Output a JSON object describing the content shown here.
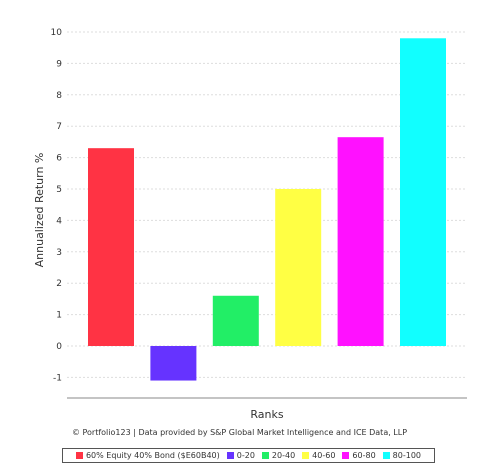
{
  "chart_data": {
    "type": "bar",
    "categories": [
      "60% Equity 40% Bond ($E60B40)",
      "0-20",
      "20-40",
      "40-60",
      "60-80",
      "80-100"
    ],
    "values": [
      6.3,
      -1.1,
      1.6,
      5.0,
      6.65,
      9.8
    ],
    "colors": [
      "#ff3344",
      "#6633ff",
      "#22ee66",
      "#ffff44",
      "#ff11ff",
      "#11ffff"
    ],
    "xlabel": "Ranks",
    "ylabel": "Annualized Return %",
    "ylim": [
      -1.5,
      10.3
    ],
    "yticks": [
      -1,
      0,
      1,
      2,
      3,
      4,
      5,
      6,
      7,
      8,
      9,
      10
    ],
    "grid": true,
    "legend_position": "bottom"
  },
  "credit": "© Portfolio123 | Data provided by S&P Global Market Intelligence and ICE Data, LLP"
}
